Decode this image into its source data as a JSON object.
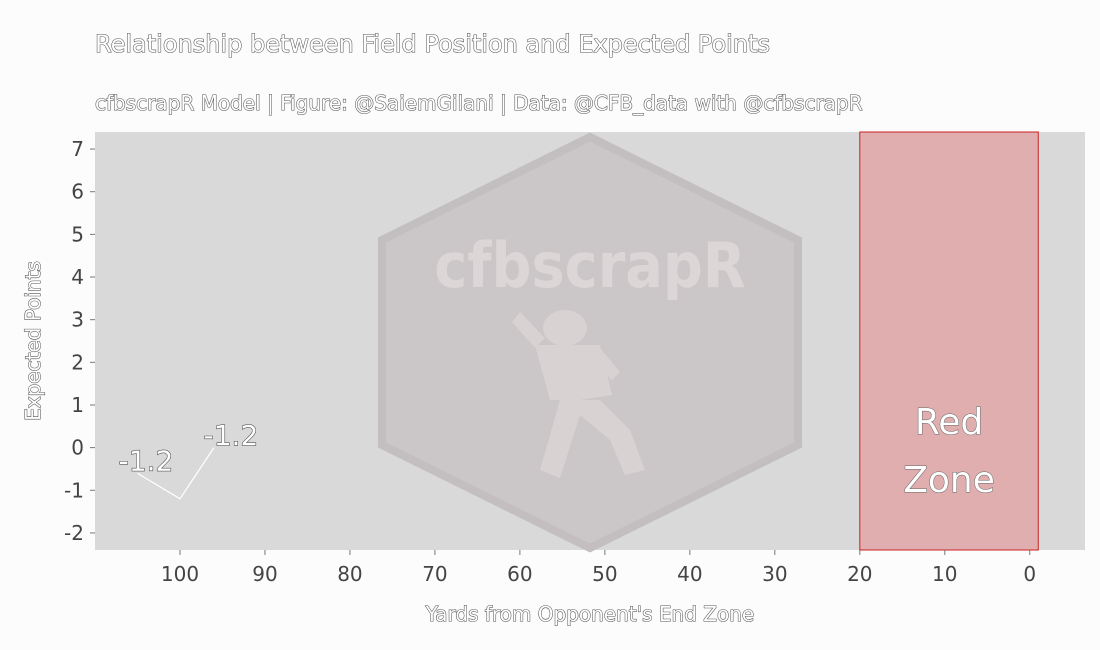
{
  "chart_data": {
    "type": "line",
    "title": "Relationship between Field Position and Expected Points",
    "subtitle": "cfbscrapR Model | Figure: @SaiemGilani | Data: @CFB_data with @cfbscrapR",
    "xlabel": "Yards from Opponent's End Zone",
    "ylabel": "Expected Points",
    "x_reversed": true,
    "xlim": [
      110,
      -6.5
    ],
    "ylim": [
      -2.4,
      7.4
    ],
    "x_ticks": [
      100,
      90,
      80,
      70,
      60,
      50,
      40,
      30,
      20,
      10,
      0
    ],
    "y_ticks": [
      -2,
      -1,
      0,
      1,
      2,
      3,
      4,
      5,
      6,
      7
    ],
    "grid": false,
    "panel_background": "#d9d9d9",
    "watermark_text": "cfbscrapR",
    "series": [
      {
        "x": [
          105,
          100,
          96
        ],
        "y": [
          -0.6,
          -1.2,
          0.0
        ],
        "color": "#ffffff"
      }
    ],
    "annotations": [
      {
        "text": "-1.2",
        "x": 104,
        "y": -0.3
      },
      {
        "text": "-1.2",
        "x": 94,
        "y": 0.3
      }
    ],
    "region": {
      "label_lines": [
        "Red",
        "Zone"
      ],
      "x_from": 20,
      "x_to": -1,
      "fill": "#e0aeae",
      "stroke": "#cc2222"
    }
  }
}
